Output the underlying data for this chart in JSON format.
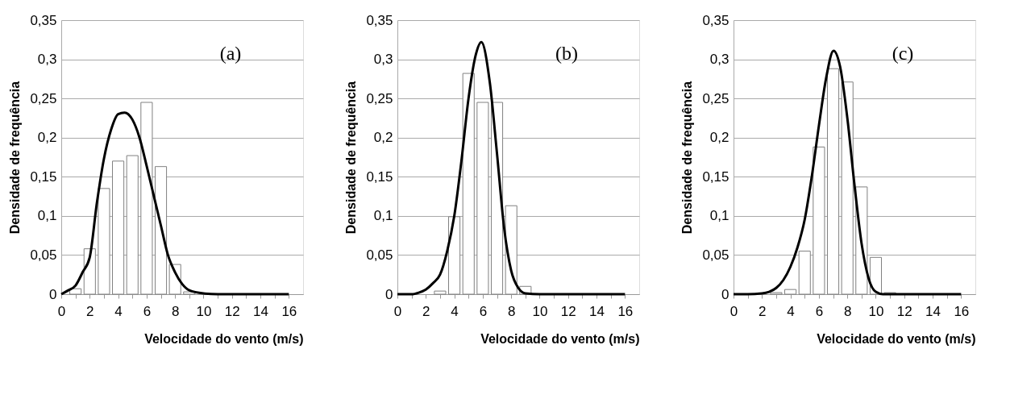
{
  "chart_data": [
    {
      "type": "bar",
      "xlabel": "Velocidade do vento (m/s)",
      "ylabel": "Densidade de frequência",
      "annotations": [
        "(a)"
      ],
      "xlim": [
        0,
        17
      ],
      "ylim": [
        0,
        0.35
      ],
      "grid": "y",
      "xticks": [
        0,
        {
          "value": 1,
          "label": null
        },
        2,
        {
          "value": 3,
          "label": null
        },
        4,
        {
          "value": 5,
          "label": null
        },
        6,
        {
          "value": 7,
          "label": null
        },
        8,
        {
          "value": 9,
          "label": null
        },
        10,
        {
          "value": 11,
          "label": null
        },
        12,
        {
          "value": 13,
          "label": null
        },
        14,
        {
          "value": 15,
          "label": null
        },
        16
      ],
      "yticks": [
        0,
        {
          "value": 0.05,
          "label": "0,05"
        },
        {
          "value": 0.1,
          "label": "0,1"
        },
        {
          "value": 0.15,
          "label": "0,15"
        },
        {
          "value": 0.2,
          "label": "0,2"
        },
        {
          "value": 0.25,
          "label": "0,25"
        },
        {
          "value": 0.3,
          "label": "0,3"
        },
        {
          "value": 0.35,
          "label": "0,35"
        }
      ],
      "series": [
        {
          "type": "bar",
          "color": "#ffffff",
          "x": [
            1,
            2,
            3,
            4,
            5,
            6,
            7,
            8,
            9
          ],
          "values": [
            0.007,
            0.058,
            0.135,
            0.17,
            0.177,
            0.245,
            0.163,
            0.038,
            0.003
          ]
        },
        {
          "type": "line",
          "color": "#000000",
          "x": [
            0,
            0.5,
            1,
            1.5,
            2,
            2.5,
            3,
            3.5,
            4,
            4.45,
            5,
            5.5,
            6,
            6.5,
            7,
            7.5,
            8,
            8.5,
            9,
            10,
            11,
            12,
            13,
            14,
            15,
            16
          ],
          "values": [
            0,
            0.005,
            0.011,
            0.028,
            0.047,
            0.116,
            0.173,
            0.21,
            0.23,
            0.232,
            0.223,
            0.2,
            0.164,
            0.126,
            0.088,
            0.05,
            0.028,
            0.013,
            0.005,
            0.001,
            0,
            0,
            0,
            0,
            0,
            0
          ]
        }
      ]
    },
    {
      "type": "bar",
      "xlabel": "Velocidade do vento (m/s)",
      "ylabel": "Densidade de frequência",
      "annotations": [
        "(b)"
      ],
      "xlim": [
        0,
        17
      ],
      "ylim": [
        0,
        0.35
      ],
      "grid": "y",
      "xticks": [
        0,
        {
          "value": 1,
          "label": null
        },
        2,
        {
          "value": 3,
          "label": null
        },
        4,
        {
          "value": 5,
          "label": null
        },
        6,
        {
          "value": 7,
          "label": null
        },
        8,
        {
          "value": 9,
          "label": null
        },
        10,
        {
          "value": 11,
          "label": null
        },
        12,
        {
          "value": 13,
          "label": null
        },
        14,
        {
          "value": 15,
          "label": null
        },
        16
      ],
      "yticks": [
        0,
        {
          "value": 0.05,
          "label": "0,05"
        },
        {
          "value": 0.1,
          "label": "0,1"
        },
        {
          "value": 0.15,
          "label": "0,15"
        },
        {
          "value": 0.2,
          "label": "0,2"
        },
        {
          "value": 0.25,
          "label": "0,25"
        },
        {
          "value": 0.3,
          "label": "0,3"
        },
        {
          "value": 0.35,
          "label": "0,35"
        }
      ],
      "series": [
        {
          "type": "bar",
          "color": "#ffffff",
          "x": [
            3,
            4,
            5,
            6,
            7,
            8,
            9
          ],
          "values": [
            0.004,
            0.099,
            0.282,
            0.245,
            0.245,
            0.113,
            0.01
          ]
        },
        {
          "type": "line",
          "color": "#000000",
          "x": [
            0,
            1,
            1.5,
            2,
            2.5,
            3,
            3.5,
            4,
            4.5,
            5,
            5.5,
            5.9,
            6.5,
            7,
            7.5,
            8,
            8.5,
            9,
            10,
            11,
            12,
            13,
            14,
            15,
            16
          ],
          "values": [
            0,
            0,
            0.002,
            0.006,
            0.014,
            0.025,
            0.055,
            0.1,
            0.17,
            0.25,
            0.305,
            0.322,
            0.27,
            0.18,
            0.085,
            0.03,
            0.008,
            0.001,
            0,
            0,
            0,
            0,
            0,
            0,
            0
          ]
        }
      ]
    },
    {
      "type": "bar",
      "xlabel": "Velocidade do vento (m/s)",
      "ylabel": "Densidade de frequência",
      "annotations": [
        "(c)"
      ],
      "xlim": [
        0,
        17
      ],
      "ylim": [
        0,
        0.35
      ],
      "grid": "y",
      "xticks": [
        0,
        {
          "value": 1,
          "label": null
        },
        2,
        {
          "value": 3,
          "label": null
        },
        4,
        {
          "value": 5,
          "label": null
        },
        6,
        {
          "value": 7,
          "label": null
        },
        8,
        {
          "value": 9,
          "label": null
        },
        10,
        {
          "value": 11,
          "label": null
        },
        12,
        {
          "value": 13,
          "label": null
        },
        14,
        {
          "value": 15,
          "label": null
        },
        16
      ],
      "yticks": [
        0,
        {
          "value": 0.05,
          "label": "0,05"
        },
        {
          "value": 0.1,
          "label": "0,1"
        },
        {
          "value": 0.15,
          "label": "0,15"
        },
        {
          "value": 0.2,
          "label": "0,2"
        },
        {
          "value": 0.25,
          "label": "0,25"
        },
        {
          "value": 0.3,
          "label": "0,3"
        },
        {
          "value": 0.35,
          "label": "0,35"
        }
      ],
      "series": [
        {
          "type": "bar",
          "color": "#ffffff",
          "x": [
            3,
            4,
            5,
            6,
            7,
            8,
            9,
            10,
            11
          ],
          "values": [
            0.002,
            0.006,
            0.055,
            0.188,
            0.288,
            0.271,
            0.137,
            0.047,
            0.002
          ]
        },
        {
          "type": "line",
          "color": "#000000",
          "x": [
            0,
            1,
            2,
            2.5,
            3,
            3.5,
            4,
            4.5,
            5,
            5.5,
            6,
            6.5,
            7.03,
            7.5,
            8,
            8.5,
            9,
            9.5,
            10,
            10.5,
            11,
            12,
            13,
            14,
            15,
            16
          ],
          "values": [
            0,
            0,
            0.001,
            0.003,
            0.008,
            0.018,
            0.035,
            0.06,
            0.095,
            0.15,
            0.215,
            0.275,
            0.311,
            0.29,
            0.225,
            0.14,
            0.065,
            0.02,
            0.003,
            0,
            0,
            0,
            0,
            0,
            0,
            0
          ]
        }
      ]
    }
  ]
}
